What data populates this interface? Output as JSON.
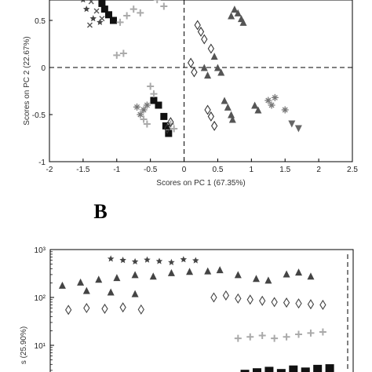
{
  "panel_b_letter": "B",
  "chart_data": [
    {
      "type": "scatter",
      "panel": "A",
      "xlabel": "Scores on PC 1 (67.35%)",
      "ylabel": "Scores on PC 2 (22.67%)",
      "xlim": [
        -2,
        2.5
      ],
      "ylim": [
        -1,
        0.9
      ],
      "xticks": [
        "-2",
        "-1.5",
        "-1",
        "-0.5",
        "0",
        "0.5",
        "1",
        "1.5",
        "2",
        "2.5"
      ],
      "yticks": [
        "0.5",
        "0",
        "-0.5",
        "-1"
      ],
      "reference_lines": {
        "x": 0,
        "y": 0
      },
      "series": [
        {
          "marker": "star",
          "color": "#444444",
          "points": [
            [
              -1.55,
              0.78
            ],
            [
              -1.5,
              0.72
            ],
            [
              -1.45,
              0.62
            ],
            [
              -1.35,
              0.52
            ],
            [
              -1.25,
              0.48
            ],
            [
              0.95,
              0.82
            ],
            [
              1.05,
              0.78
            ]
          ]
        },
        {
          "marker": "x",
          "color": "#555555",
          "points": [
            [
              -1.42,
              0.78
            ],
            [
              -1.38,
              0.7
            ],
            [
              -1.3,
              0.6
            ],
            [
              -1.22,
              0.52
            ],
            [
              -1.4,
              0.45
            ]
          ]
        },
        {
          "marker": "square",
          "color": "#111111",
          "points": [
            [
              -1.35,
              0.88
            ],
            [
              -1.3,
              0.82
            ],
            [
              -1.25,
              0.75
            ],
            [
              -1.22,
              0.68
            ],
            [
              -1.18,
              0.62
            ],
            [
              -1.12,
              0.56
            ],
            [
              -1.05,
              0.5
            ],
            [
              -0.45,
              -0.35
            ],
            [
              -0.38,
              -0.4
            ],
            [
              -0.3,
              -0.52
            ],
            [
              -0.27,
              -0.62
            ],
            [
              -0.23,
              -0.7
            ]
          ]
        },
        {
          "marker": "plus",
          "color": "#aaaaaa",
          "points": [
            [
              -0.95,
              0.48
            ],
            [
              -0.85,
              0.55
            ],
            [
              -0.75,
              0.62
            ],
            [
              -0.65,
              0.58
            ],
            [
              -0.4,
              0.72
            ],
            [
              -0.3,
              0.65
            ],
            [
              -0.5,
              -0.2
            ],
            [
              -0.45,
              -0.28
            ],
            [
              -0.6,
              -0.55
            ],
            [
              -0.55,
              -0.6
            ],
            [
              -0.15,
              -0.65
            ],
            [
              -0.2,
              -0.6
            ],
            [
              -1.0,
              0.13
            ],
            [
              -0.9,
              0.15
            ]
          ]
        },
        {
          "marker": "diamond",
          "color": "#333333",
          "points": [
            [
              -0.2,
              0.85
            ],
            [
              0.2,
              0.45
            ],
            [
              0.25,
              0.38
            ],
            [
              0.3,
              0.3
            ],
            [
              0.4,
              0.2
            ],
            [
              0.1,
              0.05
            ],
            [
              0.15,
              -0.05
            ],
            [
              0.35,
              -0.45
            ],
            [
              0.4,
              -0.52
            ],
            [
              0.45,
              -0.62
            ],
            [
              -0.25,
              -0.65
            ],
            [
              -0.2,
              -0.58
            ]
          ]
        },
        {
          "marker": "triangle-up",
          "color": "#555555",
          "points": [
            [
              0.7,
              0.55
            ],
            [
              0.75,
              0.62
            ],
            [
              0.8,
              0.58
            ],
            [
              0.85,
              0.52
            ],
            [
              0.88,
              0.48
            ],
            [
              0.45,
              0.12
            ],
            [
              0.5,
              0.0
            ],
            [
              0.55,
              -0.05
            ],
            [
              0.6,
              -0.35
            ],
            [
              0.65,
              -0.42
            ],
            [
              0.7,
              -0.5
            ],
            [
              0.72,
              -0.55
            ],
            [
              1.05,
              -0.4
            ],
            [
              1.1,
              -0.45
            ],
            [
              1.4,
              0.85
            ],
            [
              0.3,
              0.0
            ],
            [
              0.35,
              -0.08
            ]
          ]
        },
        {
          "marker": "triangle-down",
          "color": "#666666",
          "points": [
            [
              1.6,
              -0.6
            ],
            [
              1.7,
              -0.65
            ]
          ]
        },
        {
          "marker": "asterisk",
          "color": "#777777",
          "points": [
            [
              -0.55,
              -0.4
            ],
            [
              -0.6,
              -0.45
            ],
            [
              -0.65,
              -0.5
            ],
            [
              -0.7,
              -0.42
            ],
            [
              1.25,
              -0.35
            ],
            [
              1.3,
              -0.4
            ],
            [
              1.35,
              -0.32
            ],
            [
              1.5,
              -0.45
            ]
          ]
        }
      ]
    },
    {
      "type": "scatter",
      "panel": "B",
      "xlabel": "",
      "ylabel": "s (25.90%)",
      "yscale": "log",
      "ylim": [
        2,
        1000
      ],
      "yticks": [
        "10³",
        "10²",
        "10¹"
      ],
      "reference_lines": {
        "x_dashed_right": true
      },
      "series": [
        {
          "marker": "star",
          "color": "#444444",
          "points": [
            [
              0.5,
              640
            ],
            [
              0.6,
              600
            ],
            [
              0.7,
              560
            ],
            [
              0.8,
              610
            ],
            [
              0.9,
              570
            ],
            [
              1.0,
              540
            ],
            [
              1.1,
              620
            ],
            [
              1.2,
              590
            ]
          ]
        },
        {
          "marker": "triangle-up",
          "color": "#444444",
          "points": [
            [
              0.1,
              180
            ],
            [
              0.25,
              210
            ],
            [
              0.4,
              240
            ],
            [
              0.55,
              260
            ],
            [
              0.7,
              300
            ],
            [
              0.85,
              280
            ],
            [
              1.0,
              330
            ],
            [
              1.15,
              350
            ],
            [
              1.3,
              360
            ],
            [
              1.4,
              380
            ],
            [
              1.55,
              300
            ],
            [
              1.7,
              250
            ],
            [
              1.8,
              230
            ],
            [
              1.95,
              310
            ],
            [
              2.05,
              340
            ],
            [
              2.15,
              280
            ],
            [
              0.3,
              140
            ],
            [
              0.5,
              130
            ],
            [
              0.7,
              120
            ]
          ]
        },
        {
          "marker": "diamond",
          "color": "#444444",
          "points": [
            [
              0.15,
              55
            ],
            [
              0.3,
              60
            ],
            [
              0.45,
              58
            ],
            [
              0.6,
              62
            ],
            [
              0.75,
              56
            ],
            [
              1.35,
              100
            ],
            [
              1.45,
              110
            ],
            [
              1.55,
              95
            ],
            [
              1.65,
              90
            ],
            [
              1.75,
              85
            ],
            [
              1.85,
              80
            ],
            [
              1.95,
              78
            ],
            [
              2.05,
              75
            ],
            [
              2.15,
              72
            ],
            [
              2.25,
              70
            ]
          ]
        },
        {
          "marker": "plus",
          "color": "#aaaaaa",
          "points": [
            [
              1.55,
              14
            ],
            [
              1.65,
              15
            ],
            [
              1.75,
              16
            ],
            [
              1.85,
              14
            ],
            [
              1.95,
              15
            ],
            [
              2.05,
              17
            ],
            [
              2.15,
              18
            ],
            [
              2.25,
              19
            ]
          ]
        },
        {
          "marker": "square",
          "color": "#111111",
          "points": [
            [
              1.6,
              2.6
            ],
            [
              1.7,
              2.8
            ],
            [
              1.8,
              3.0
            ],
            [
              1.9,
              2.7
            ],
            [
              2.0,
              3.2
            ],
            [
              2.1,
              2.9
            ],
            [
              2.2,
              3.3
            ],
            [
              2.3,
              3.4
            ]
          ]
        }
      ]
    }
  ]
}
